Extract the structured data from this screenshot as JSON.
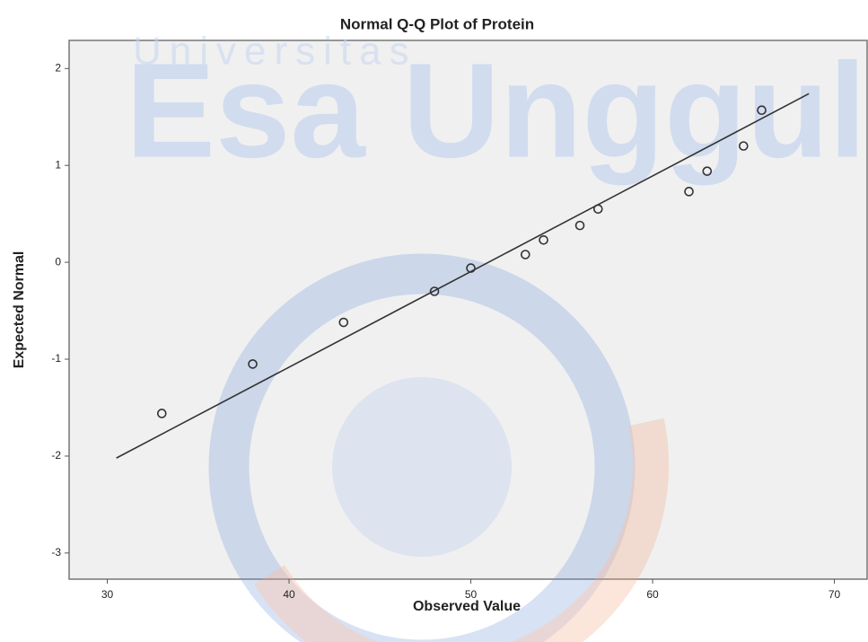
{
  "chart_data": {
    "type": "scatter",
    "title": "Normal Q-Q Plot of Protein",
    "x_label": "Observed Value",
    "y_label": "Expected Normal",
    "watermark": [
      "Universitas",
      "Esa Unggul"
    ],
    "x": [
      33,
      38,
      43,
      48,
      50,
      53,
      54,
      56,
      57,
      62,
      63,
      65,
      66
    ],
    "y": [
      -1.56,
      -1.05,
      -0.62,
      -0.3,
      -0.06,
      0.08,
      0.23,
      0.38,
      0.55,
      0.73,
      0.94,
      1.2,
      1.57
    ],
    "reference_line": {
      "x": [
        30.5,
        68.6
      ],
      "y": [
        -2.02,
        1.74
      ]
    },
    "color": "#333333",
    "xlim": [
      27.9,
      71.8
    ],
    "xticks": [
      30,
      40,
      50,
      60,
      70
    ],
    "ylim": [
      -3.27,
      2.29
    ],
    "yticks": [
      -3,
      -2,
      -1,
      0,
      1,
      2
    ]
  }
}
